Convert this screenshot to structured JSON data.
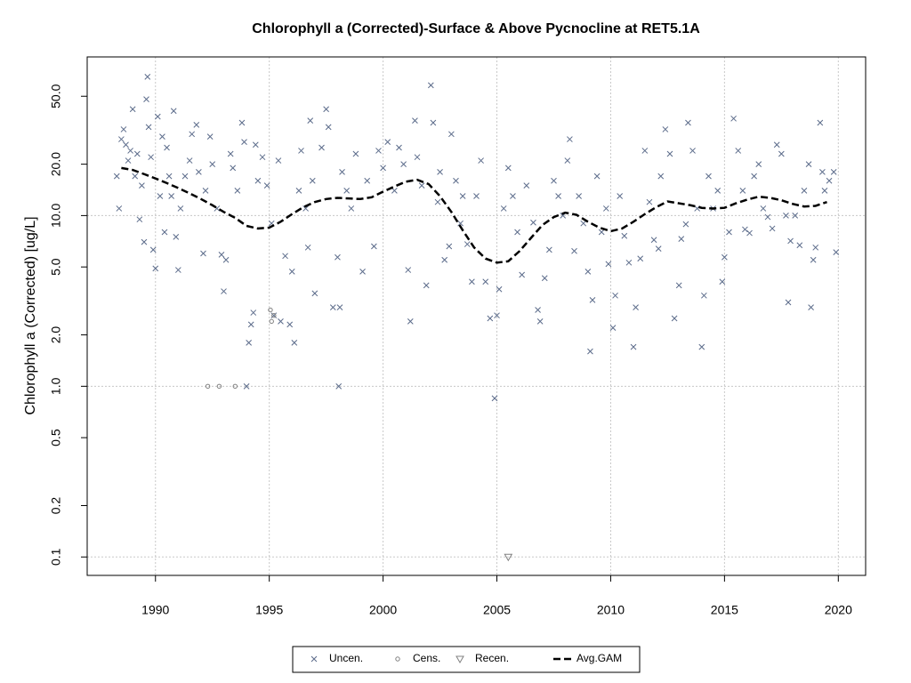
{
  "chart_data": {
    "type": "scatter",
    "title": "Chlorophyll a (Corrected)-Surface & Above Pycnocline at RET5.1A",
    "ylabel": "Chlorophyll a (Corrected) [ug/L]",
    "log_y": true,
    "grid": true,
    "legend": "bottom",
    "xlim": [
      1987.0,
      2021.2
    ],
    "xticks": [
      1990,
      1995,
      2000,
      2005,
      2010,
      2015,
      2020
    ],
    "ylim": [
      0.078,
      85
    ],
    "yticks": [
      0.1,
      0.2,
      0.5,
      {
        "value": 1,
        "label": "1.0"
      },
      {
        "value": 2,
        "label": "2.0"
      },
      {
        "value": 5,
        "label": "5.0"
      },
      {
        "value": 10,
        "label": "10.0"
      },
      {
        "value": 20,
        "label": "20.0"
      },
      {
        "value": 50,
        "label": "50.0"
      }
    ],
    "series": [
      {
        "name": "Uncen.",
        "color": "#5b6b8a",
        "marker": "x",
        "x": [
          1988.3,
          1988.4,
          1988.5,
          1988.6,
          1988.7,
          1988.8,
          1988.9,
          1989.0,
          1989.1,
          1989.2,
          1989.3,
          1989.4,
          1989.5,
          1989.6,
          1989.65,
          1989.7,
          1989.8,
          1989.9,
          1990.0,
          1990.1,
          1990.2,
          1990.3,
          1990.4,
          1990.5,
          1990.6,
          1990.7,
          1990.8,
          1990.9,
          1991.0,
          1991.1,
          1991.3,
          1991.5,
          1991.6,
          1991.8,
          1991.9,
          1992.1,
          1992.2,
          1992.4,
          1992.5,
          1992.7,
          1992.9,
          1993.0,
          1993.1,
          1993.3,
          1993.4,
          1993.6,
          1993.8,
          1993.9,
          1994.0,
          1994.1,
          1994.2,
          1994.3,
          1994.4,
          1994.5,
          1994.7,
          1994.9,
          1995.1,
          1995.2,
          1995.4,
          1995.5,
          1995.7,
          1995.9,
          1996.0,
          1996.1,
          1996.3,
          1996.4,
          1996.6,
          1996.7,
          1996.8,
          1996.9,
          1997.0,
          1997.3,
          1997.5,
          1997.6,
          1997.8,
          1998.0,
          1998.05,
          1998.1,
          1998.2,
          1998.4,
          1998.6,
          1998.8,
          1999.1,
          1999.3,
          1999.6,
          1999.8,
          2000.0,
          2000.2,
          2000.5,
          2000.7,
          2000.9,
          2001.1,
          2001.2,
          2001.4,
          2001.5,
          2001.7,
          2001.9,
          2002.1,
          2002.2,
          2002.4,
          2002.5,
          2002.7,
          2002.9,
          2003.0,
          2003.2,
          2003.4,
          2003.5,
          2003.7,
          2003.9,
          2004.1,
          2004.3,
          2004.5,
          2004.7,
          2004.9,
          2005.0,
          2005.1,
          2005.3,
          2005.5,
          2005.7,
          2005.9,
          2006.1,
          2006.3,
          2006.6,
          2006.8,
          2006.9,
          2007.1,
          2007.3,
          2007.5,
          2007.7,
          2007.9,
          2008.1,
          2008.2,
          2008.4,
          2008.6,
          2008.8,
          2009.0,
          2009.1,
          2009.2,
          2009.4,
          2009.6,
          2009.8,
          2009.9,
          2010.1,
          2010.2,
          2010.4,
          2010.6,
          2010.8,
          2011.0,
          2011.1,
          2011.3,
          2011.5,
          2011.7,
          2011.9,
          2012.1,
          2012.2,
          2012.4,
          2012.6,
          2012.8,
          2013.0,
          2013.1,
          2013.3,
          2013.4,
          2013.6,
          2013.8,
          2014.0,
          2014.1,
          2014.3,
          2014.5,
          2014.7,
          2014.9,
          2015.0,
          2015.2,
          2015.4,
          2015.6,
          2015.8,
          2015.9,
          2016.1,
          2016.3,
          2016.5,
          2016.7,
          2016.9,
          2017.1,
          2017.3,
          2017.5,
          2017.7,
          2017.8,
          2017.9,
          2018.1,
          2018.3,
          2018.5,
          2018.7,
          2018.8,
          2018.9,
          2019.0,
          2019.2,
          2019.3,
          2019.4,
          2019.6,
          2019.8,
          2019.9
        ],
        "values": [
          17,
          11,
          28,
          32,
          26,
          21,
          24,
          42,
          17,
          23,
          9.5,
          15,
          7,
          48,
          65,
          33,
          22,
          6.3,
          4.9,
          38,
          13,
          29,
          8,
          25,
          17,
          13,
          41,
          7.5,
          4.8,
          11,
          17,
          21,
          30,
          34,
          18,
          6,
          14,
          29,
          20,
          11,
          5.9,
          3.6,
          5.5,
          23,
          19,
          14,
          35,
          27,
          1.0,
          1.8,
          2.3,
          2.7,
          26,
          16,
          22,
          15,
          9,
          2.6,
          21,
          2.4,
          5.8,
          2.3,
          4.7,
          1.8,
          14,
          24,
          11,
          6.5,
          36,
          16,
          3.5,
          25,
          42,
          33,
          2.9,
          5.7,
          1.0,
          2.9,
          18,
          14,
          11,
          23,
          4.7,
          16,
          6.6,
          24,
          19,
          27,
          14,
          25,
          20,
          4.8,
          2.4,
          36,
          22,
          15,
          3.9,
          58,
          35,
          12,
          18,
          5.5,
          6.6,
          30,
          16,
          9,
          13,
          6.8,
          4.1,
          13,
          21,
          4.1,
          2.5,
          0.85,
          2.6,
          3.7,
          11,
          19,
          13,
          8,
          4.5,
          15,
          9.1,
          2.8,
          2.4,
          4.3,
          6.3,
          16,
          13,
          10,
          21,
          28,
          6.2,
          13,
          9,
          4.7,
          1.6,
          3.2,
          17,
          8,
          11,
          5.2,
          2.2,
          3.4,
          13,
          7.6,
          5.3,
          1.7,
          2.9,
          5.6,
          24,
          12,
          7.2,
          6.4,
          17,
          32,
          23,
          2.5,
          3.9,
          7.3,
          8.9,
          35,
          24,
          11,
          1.7,
          3.4,
          17,
          11,
          14,
          4.1,
          5.7,
          8,
          37,
          24,
          14,
          8.3,
          7.9,
          17,
          20,
          11,
          9.8,
          8.4,
          26,
          23,
          10,
          3.1,
          7.1,
          10,
          6.7,
          14,
          20,
          2.9,
          5.5,
          6.5,
          35,
          18,
          14,
          16,
          18,
          6.1
        ]
      },
      {
        "name": "Cens.",
        "color": "#808080",
        "marker": "circle",
        "x": [
          1992.3,
          1992.8,
          1993.5,
          1995.05,
          1995.1,
          1995.2
        ],
        "values": [
          1.0,
          1.0,
          1.0,
          2.8,
          2.4,
          2.6
        ]
      },
      {
        "name": "Recen.",
        "color": "#808080",
        "marker": "triangle-down",
        "x": [
          2005.5
        ],
        "values": [
          0.1
        ]
      },
      {
        "name": "Avg.GAM",
        "color": "#000000",
        "marker": "dashed-line",
        "x": [
          1988.5,
          1989,
          1989.5,
          1990,
          1990.5,
          1991,
          1991.5,
          1992,
          1992.5,
          1993,
          1993.5,
          1994,
          1994.5,
          1995,
          1995.5,
          1996,
          1996.5,
          1997,
          1997.5,
          1998,
          1998.5,
          1999,
          1999.5,
          2000,
          2000.5,
          2001,
          2001.5,
          2002,
          2002.5,
          2003,
          2003.5,
          2004,
          2004.5,
          2005,
          2005.5,
          2006,
          2006.5,
          2007,
          2007.5,
          2008,
          2008.5,
          2009,
          2009.5,
          2010,
          2010.5,
          2011,
          2011.5,
          2012,
          2012.5,
          2013,
          2013.5,
          2014,
          2014.5,
          2015,
          2015.5,
          2016,
          2016.5,
          2017,
          2017.5,
          2018,
          2018.5,
          2019,
          2019.5
        ],
        "values": [
          19,
          18.5,
          17.5,
          16.5,
          15.5,
          14.5,
          13.5,
          12.5,
          11.5,
          10.5,
          9.7,
          8.7,
          8.4,
          8.5,
          9.2,
          10.2,
          11.2,
          12,
          12.5,
          12.7,
          12.6,
          12.5,
          12.8,
          13.8,
          14.8,
          15.8,
          16.2,
          15.3,
          13,
          10.5,
          8.2,
          6.5,
          5.6,
          5.3,
          5.4,
          6.2,
          7.4,
          8.8,
          9.8,
          10.4,
          10.1,
          9.2,
          8.5,
          8.1,
          8.4,
          9.2,
          10.2,
          11.2,
          12.1,
          11.8,
          11.5,
          11.1,
          11,
          11.1,
          11.8,
          12.4,
          12.9,
          12.7,
          12.3,
          11.7,
          11.3,
          11.4,
          12.0
        ]
      }
    ]
  }
}
